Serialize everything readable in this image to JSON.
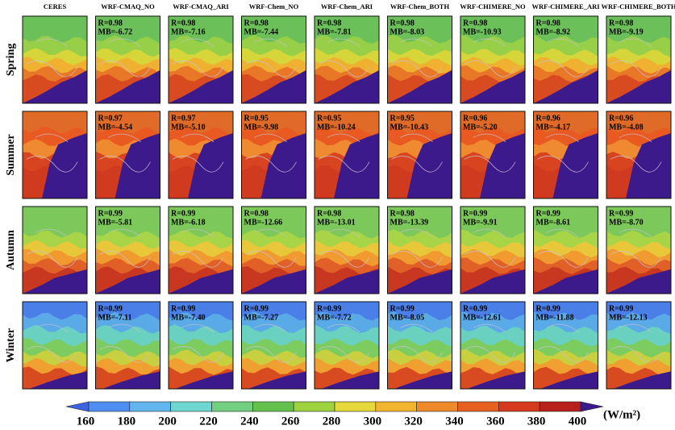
{
  "columns": [
    "CERES",
    "WRF-CMAQ_NO",
    "WRF-CMAQ_ARI",
    "WRF-Chem_NO",
    "WRF-Chem_ARI",
    "WRF-Chem_BOTH",
    "WRF-CHIMERE_NO",
    "WRF-CHIMERE_ARI",
    "WRF-CHIMERE_BOTH"
  ],
  "rows": [
    {
      "season": "Spring",
      "stats": [
        [
          "R=0.98",
          "MB=-6.72"
        ],
        [
          "R=0.98",
          "MB=-7.16"
        ],
        [
          "R=0.98",
          "MB=-7.44"
        ],
        [
          "R=0.98",
          "MB=-7.81"
        ],
        [
          "R=0.98",
          "MB=-8.03"
        ],
        [
          "R=0.98",
          "MB=-10.93"
        ],
        [
          "R=0.98",
          "MB=-8.92"
        ],
        [
          "R=0.98",
          "MB=-9.19"
        ]
      ]
    },
    {
      "season": "Summer",
      "stats": [
        [
          "R=0.97",
          "MB=-4.54"
        ],
        [
          "R=0.97",
          "MB=-5.10"
        ],
        [
          "R=0.95",
          "MB=-9.98"
        ],
        [
          "R=0.95",
          "MB=-10.24"
        ],
        [
          "R=0.95",
          "MB=-10.43"
        ],
        [
          "R=0.96",
          "MB=-5.20"
        ],
        [
          "R=0.96",
          "MB=-4.17"
        ],
        [
          "R=0.96",
          "MB=-4.08"
        ]
      ]
    },
    {
      "season": "Autumn",
      "stats": [
        [
          "R=0.99",
          "MB=-5.81"
        ],
        [
          "R=0.99",
          "MB=-6.18"
        ],
        [
          "R=0.98",
          "MB=-12.66"
        ],
        [
          "R=0.98",
          "MB=-13.01"
        ],
        [
          "R=0.98",
          "MB=-13.39"
        ],
        [
          "R=0.99",
          "MB=-9.91"
        ],
        [
          "R=0.99",
          "MB=-8.61"
        ],
        [
          "R=0.99",
          "MB=-8.70"
        ]
      ]
    },
    {
      "season": "Winter",
      "stats": [
        [
          "R=0.99",
          "MB=-7.11"
        ],
        [
          "R=0.99",
          "MB=-7.40"
        ],
        [
          "R=0.99",
          "MB=-7.27"
        ],
        [
          "R=0.99",
          "MB=-7.72"
        ],
        [
          "R=0.99",
          "MB=-8.05"
        ],
        [
          "R=0.99",
          "MB=-12.61"
        ],
        [
          "R=0.99",
          "MB=-11.88"
        ],
        [
          "R=0.99",
          "MB=-12.13"
        ]
      ]
    }
  ],
  "colorbar": {
    "ticks": [
      160,
      180,
      200,
      220,
      240,
      260,
      280,
      300,
      320,
      340,
      360,
      380,
      400
    ],
    "unit": "(W/m²)",
    "colors": [
      "#3b62e0",
      "#4f8ef0",
      "#62b6ee",
      "#6fd6cf",
      "#72cf82",
      "#63c04d",
      "#9fd23f",
      "#e6d83a",
      "#f2b52f",
      "#ee8a2a",
      "#e5601f",
      "#d63a1d",
      "#b8201c",
      "#3d1a8c"
    ]
  }
}
